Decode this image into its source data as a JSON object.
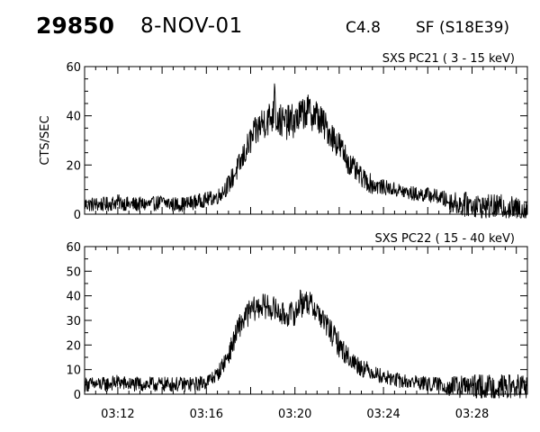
{
  "header": {
    "event_id": "29850",
    "date": "8-NOV-01",
    "flare_class": "C4.8",
    "location": "SF (S18E39)"
  },
  "chart_data": [
    {
      "type": "line",
      "title": "SXS PC21  (  3 - 15 keV)",
      "xlabel": "",
      "ylabel": "CTS/SEC",
      "ylim": [
        0,
        60
      ],
      "yticks": [
        "0",
        "20",
        "40",
        "60"
      ],
      "xlim": [
        "03:10:30",
        "03:30:30"
      ],
      "xticks": [
        "03:12",
        "03:16",
        "03:20",
        "03:24",
        "03:28"
      ],
      "color": "#000000",
      "series": [
        {
          "x": [
            "03:10:30",
            "03:11:00",
            "03:11:30",
            "03:12:00",
            "03:12:30",
            "03:13:00",
            "03:13:30",
            "03:14:00",
            "03:14:30",
            "03:15:00",
            "03:15:30",
            "03:16:00",
            "03:16:30",
            "03:17:00",
            "03:17:30",
            "03:18:00",
            "03:18:30",
            "03:19:00",
            "03:19:30",
            "03:20:00",
            "03:20:30",
            "03:21:00",
            "03:21:30",
            "03:22:00",
            "03:22:30",
            "03:23:00",
            "03:23:30",
            "03:24:00",
            "03:24:30",
            "03:25:00",
            "03:25:30",
            "03:26:00",
            "03:26:30",
            "03:27:00",
            "03:27:30",
            "03:28:00",
            "03:28:30",
            "03:29:00",
            "03:29:30",
            "03:30:00"
          ],
          "values": [
            4,
            4,
            4,
            5,
            4,
            4,
            4,
            5,
            4,
            4,
            5,
            6,
            7,
            12,
            20,
            30,
            37,
            40,
            37,
            38,
            42,
            40,
            34,
            28,
            20,
            15,
            12,
            11,
            10,
            9,
            8,
            8,
            7,
            5,
            4,
            4,
            3,
            3,
            3,
            2
          ],
          "noise": [
            3,
            3,
            3,
            3,
            3,
            3,
            3,
            3,
            3,
            3,
            3,
            3,
            3,
            4,
            5,
            6,
            7,
            7,
            7,
            7,
            7,
            7,
            6,
            6,
            5,
            4,
            4,
            3,
            3,
            3,
            3,
            3,
            3,
            4,
            5,
            5,
            5,
            5,
            5,
            5
          ],
          "peaks": [
            {
              "x": "03:19:05",
              "value": 55
            }
          ]
        }
      ]
    },
    {
      "type": "line",
      "title": "SXS PC22  ( 15 - 40 keV)",
      "xlabel": "",
      "ylabel": "",
      "ylim": [
        0,
        60
      ],
      "yticks": [
        "0",
        "10",
        "20",
        "30",
        "40",
        "50",
        "60"
      ],
      "xlim": [
        "03:10:30",
        "03:30:30"
      ],
      "xticks": [
        "03:12",
        "03:16",
        "03:20",
        "03:24",
        "03:28"
      ],
      "color": "#000000",
      "series": [
        {
          "x": [
            "03:10:30",
            "03:11:00",
            "03:11:30",
            "03:12:00",
            "03:12:30",
            "03:13:00",
            "03:13:30",
            "03:14:00",
            "03:14:30",
            "03:15:00",
            "03:15:30",
            "03:16:00",
            "03:16:30",
            "03:17:00",
            "03:17:30",
            "03:18:00",
            "03:18:30",
            "03:19:00",
            "03:19:30",
            "03:20:00",
            "03:20:30",
            "03:21:00",
            "03:21:30",
            "03:22:00",
            "03:22:30",
            "03:23:00",
            "03:23:30",
            "03:24:00",
            "03:24:30",
            "03:25:00",
            "03:25:30",
            "03:26:00",
            "03:26:30",
            "03:27:00",
            "03:27:30",
            "03:28:00",
            "03:28:30",
            "03:29:00",
            "03:29:30",
            "03:30:00"
          ],
          "values": [
            4,
            4,
            4,
            5,
            4,
            4,
            4,
            4,
            4,
            4,
            4,
            5,
            8,
            16,
            28,
            34,
            36,
            35,
            32,
            33,
            38,
            34,
            27,
            20,
            14,
            11,
            9,
            7,
            6,
            5,
            5,
            4,
            4,
            3,
            3,
            3,
            3,
            3,
            3,
            3
          ],
          "noise": [
            3,
            3,
            3,
            3,
            3,
            3,
            3,
            3,
            3,
            3,
            3,
            3,
            3,
            4,
            5,
            5,
            5,
            5,
            5,
            5,
            5,
            5,
            5,
            5,
            4,
            4,
            3,
            3,
            3,
            3,
            3,
            3,
            3,
            4,
            5,
            5,
            5,
            5,
            5,
            5
          ],
          "peaks": [
            {
              "x": "03:20:15",
              "value": 45
            }
          ]
        }
      ]
    }
  ]
}
